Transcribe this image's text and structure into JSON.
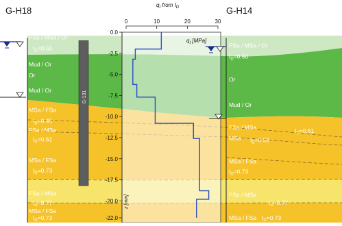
{
  "titles": {
    "left_borehole": "G-H18",
    "right_borehole": "G-H14"
  },
  "top_axis": {
    "label": "qt from ID",
    "label_main": "q",
    "label_sub": "t",
    "label_rest": " from I",
    "label_rest_sub": "D",
    "ticks": [
      "0",
      "10",
      "20",
      "30"
    ],
    "ticks_values": [
      0,
      10,
      20,
      30
    ]
  },
  "depth_axis": {
    "label": "z [mm]",
    "ticks": [
      "0.0",
      "-2.5",
      "-5.0",
      "-7.5",
      "-10.0",
      "-12.5",
      "-15.0",
      "-17.5",
      "-20.0",
      "-22.0"
    ],
    "tick_values": [
      0.0,
      -2.5,
      -5.0,
      -7.5,
      -10.0,
      -12.5,
      -15.0,
      -17.5,
      -20.0,
      -22.0
    ]
  },
  "profile": {
    "label": "qt [MPa]",
    "label_main": "q",
    "label_sub": "t",
    "label_rest": " [MPa]",
    "steps_depth_qt": [
      [
        0.0,
        11.5
      ],
      [
        -2.0,
        11.5
      ],
      [
        -2.0,
        3.0
      ],
      [
        -3.2,
        3.0
      ],
      [
        -3.2,
        2.2
      ],
      [
        -6.2,
        2.2
      ],
      [
        -6.2,
        3.5
      ],
      [
        -7.7,
        3.5
      ],
      [
        -7.7,
        9.5
      ],
      [
        -10.8,
        9.5
      ],
      [
        -10.8,
        22.0
      ],
      [
        -12.6,
        22.0
      ],
      [
        -12.6,
        24.0
      ],
      [
        -18.8,
        24.0
      ],
      [
        -18.8,
        27.0
      ],
      [
        -19.8,
        27.0
      ],
      [
        -19.8,
        23.0
      ],
      [
        -22.0,
        23.0
      ]
    ],
    "color": "#2a4cc0"
  },
  "cpt_bar": {
    "label": "G-131",
    "top": -1.0,
    "bottom": -18.2
  },
  "left_labels": [
    {
      "text": "FSa / MSa / Or",
      "z": -0.6
    },
    {
      "text": "ID=0.50",
      "z": -1.9,
      "main": "I",
      "sub": "D",
      "rest": "=0.50"
    },
    {
      "text": "Mud / Or",
      "z": -3.8
    },
    {
      "text": "Or",
      "z": -5.1
    },
    {
      "text": "Mud / Or",
      "z": -6.9
    },
    {
      "text": "MSa / FSa",
      "z": -9.2
    },
    {
      "text": "ID=0.45",
      "z": -10.5,
      "main": "I",
      "sub": "D",
      "rest": "=0.45"
    },
    {
      "text": "FSa / MSa",
      "z": -11.6
    },
    {
      "text": "ID=0.61",
      "z": -12.7,
      "main": "I",
      "sub": "D",
      "rest": "=0.61"
    },
    {
      "text": "MSa / FSa",
      "z": -15.2
    },
    {
      "text": "ID=0.73",
      "z": -16.4,
      "main": "I",
      "sub": "D",
      "rest": "=0.73"
    },
    {
      "text": "FSa / MSa",
      "z": -19.1
    },
    {
      "text": "ID=0.77",
      "z": -20.2,
      "main": "I",
      "sub": "D",
      "rest": "=0.77"
    },
    {
      "text": "MSa / FSa",
      "z": -21.2
    },
    {
      "text": "ID=0.73",
      "z": -22.2,
      "main": "I",
      "sub": "D",
      "rest": "=0.73"
    }
  ],
  "right_labels": [
    {
      "text": "FSa / MSa / Or",
      "z": -1.6
    },
    {
      "text": "ID=0.50",
      "z": -2.9,
      "main": "I",
      "sub": "D",
      "rest": "=0.50"
    },
    {
      "text": "Or",
      "z": -5.6
    },
    {
      "text": "Mud / Or",
      "z": -8.6
    },
    {
      "text": "FSa / MSa",
      "z": -11.3
    },
    {
      "text": "ID=0.61",
      "z": -11.7,
      "main": "I",
      "sub": "D",
      "rest": "=0.61"
    },
    {
      "text": "MSa",
      "z": -12.6
    },
    {
      "text": "ID=0.58",
      "z": -12.8,
      "main": "I",
      "sub": "D",
      "rest": "=0.58"
    },
    {
      "text": "MSa / FSa",
      "z": -15.3
    },
    {
      "text": "ID=0.73",
      "z": -16.5,
      "main": "I",
      "sub": "D",
      "rest": "=0.73"
    },
    {
      "text": "FSa / MSa",
      "z": -19.3
    },
    {
      "text": "ID=0.77",
      "z": -20.2,
      "main": "I",
      "sub": "D",
      "rest": "=0.77"
    },
    {
      "text": "MSa / FSa",
      "z": -22.2
    },
    {
      "text": "ID=0.73",
      "z": -22.2,
      "main": "I",
      "sub": "D",
      "rest": "=0.73"
    }
  ],
  "colors": {
    "light_green": "#cfe8c4",
    "green": "#5cb947",
    "yellow": "#f6c22a",
    "light_yellow": "#f7e46a",
    "bar": "#5d5d5d",
    "water": "#1a2b8a"
  }
}
